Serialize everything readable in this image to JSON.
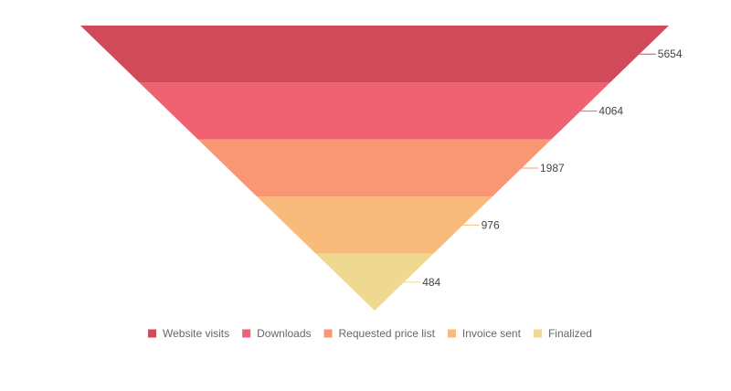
{
  "chart_data": {
    "type": "funnel",
    "title": "",
    "categories": [
      "Website visits",
      "Downloads",
      "Requested price list",
      "Invoice sent",
      "Finalized"
    ],
    "values": [
      5654,
      4064,
      1987,
      976,
      484
    ],
    "colors": [
      "#d04a5a",
      "#f06272",
      "#f99775",
      "#f8bb7b",
      "#efd88f"
    ],
    "legend": {
      "position": "bottom",
      "items": [
        {
          "label": "Website visits",
          "color": "#d04a5a"
        },
        {
          "label": "Downloads",
          "color": "#f06272"
        },
        {
          "label": "Requested price list",
          "color": "#f99775"
        },
        {
          "label": "Invoice sent",
          "color": "#f8bb7b"
        },
        {
          "label": "Finalized",
          "color": "#efd88f"
        }
      ]
    }
  }
}
